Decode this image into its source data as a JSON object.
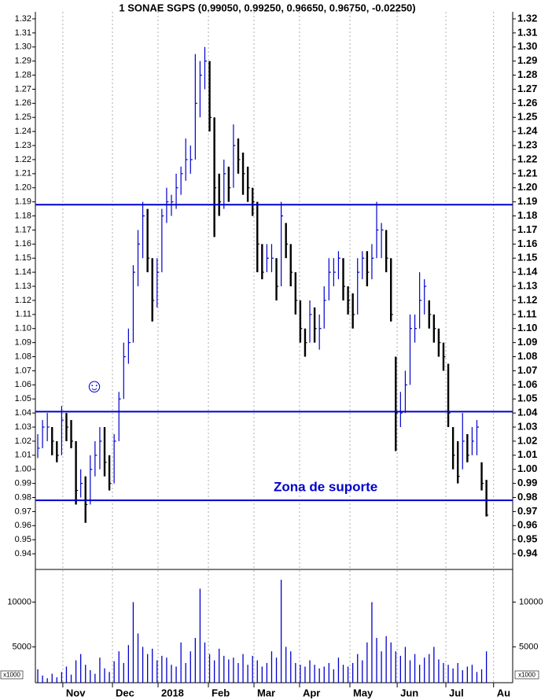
{
  "chart_data": {
    "type": "ohlc",
    "title": "1 SONAE SGPS (0.99050, 0.99250, 0.96650, 0.96750, -0.02250)",
    "x": [
      1,
      3,
      5,
      7,
      9,
      11,
      13,
      15,
      17,
      19,
      21,
      23,
      25,
      27,
      29,
      31,
      33,
      35,
      37,
      39,
      41,
      43,
      45,
      47,
      49,
      51,
      53,
      55,
      57,
      59,
      61,
      63,
      65,
      67,
      69,
      71,
      73,
      75,
      77,
      79,
      81,
      83,
      85,
      87,
      89,
      91,
      93,
      95,
      97,
      99,
      101,
      103,
      105,
      107,
      109,
      111,
      113,
      115,
      117,
      119,
      121,
      123,
      125,
      127,
      129,
      131,
      133,
      135,
      137,
      139,
      141,
      143,
      145,
      147,
      149,
      151,
      153,
      155,
      157,
      159,
      161,
      163,
      165,
      167,
      169,
      171,
      173,
      175,
      177,
      179,
      181,
      183,
      185,
      187,
      189
    ],
    "xlim": [
      0,
      200
    ],
    "xticks": [
      {
        "value": 11.5,
        "label": "Nov"
      },
      {
        "value": 32.3,
        "label": "Dec"
      },
      {
        "value": 51.4,
        "label": "2018"
      },
      {
        "value": 72.5,
        "label": "Feb"
      },
      {
        "value": 91.6,
        "label": "Mar"
      },
      {
        "value": 110.7,
        "label": "Apr"
      },
      {
        "value": 131.8,
        "label": "May"
      },
      {
        "value": 151.6,
        "label": "Jun"
      },
      {
        "value": 172,
        "label": "Jul"
      },
      {
        "value": 192,
        "label": "Au"
      }
    ],
    "high": [
      1.025,
      1.035,
      1.04,
      1.03,
      1.02,
      1.045,
      1.04,
      1.035,
      1.02,
      1.0,
      0.995,
      1.01,
      1.02,
      1.03,
      1.03,
      1.01,
      1.025,
      1.055,
      1.09,
      1.1,
      1.145,
      1.17,
      1.19,
      1.185,
      1.15,
      1.15,
      1.185,
      1.2,
      1.195,
      1.21,
      1.215,
      1.235,
      1.23,
      1.295,
      1.29,
      1.3,
      1.29,
      1.25,
      1.21,
      1.22,
      1.215,
      1.245,
      1.235,
      1.225,
      1.215,
      1.2,
      1.19,
      1.16,
      1.16,
      1.16,
      1.15,
      1.19,
      1.175,
      1.16,
      1.14,
      1.12,
      1.1,
      1.12,
      1.115,
      1.11,
      1.13,
      1.15,
      1.15,
      1.155,
      1.15,
      1.13,
      1.125,
      1.15,
      1.155,
      1.155,
      1.16,
      1.19,
      1.175,
      1.17,
      1.15,
      1.08,
      1.055,
      1.07,
      1.11,
      1.11,
      1.14,
      1.135,
      1.12,
      1.11,
      1.1,
      1.09,
      1.075,
      1.03,
      1.02,
      1.04,
      1.025,
      1.03,
      1.035,
      1.005,
      0.9925
    ],
    "low": [
      1.008,
      1.015,
      1.02,
      1.01,
      1.005,
      1.01,
      1.02,
      1.015,
      0.975,
      0.98,
      0.962,
      0.975,
      0.995,
      1.0,
      0.995,
      0.985,
      0.99,
      1.02,
      1.05,
      1.075,
      1.09,
      1.13,
      1.15,
      1.14,
      1.105,
      1.115,
      1.14,
      1.175,
      1.18,
      1.185,
      1.195,
      1.205,
      1.21,
      1.22,
      1.25,
      1.27,
      1.24,
      1.165,
      1.18,
      1.185,
      1.19,
      1.2,
      1.21,
      1.195,
      1.19,
      1.18,
      1.14,
      1.135,
      1.14,
      1.14,
      1.12,
      1.13,
      1.15,
      1.13,
      1.11,
      1.09,
      1.08,
      1.09,
      1.09,
      1.085,
      1.1,
      1.12,
      1.13,
      1.135,
      1.12,
      1.11,
      1.1,
      1.11,
      1.135,
      1.13,
      1.135,
      1.15,
      1.15,
      1.14,
      1.105,
      1.013,
      1.03,
      1.04,
      1.06,
      1.09,
      1.1,
      1.11,
      1.1,
      1.09,
      1.08,
      1.07,
      1.03,
      1.0,
      0.99,
      1.0,
      1.005,
      1.01,
      1.01,
      0.985,
      0.9665
    ],
    "close": [
      1.015,
      1.03,
      1.03,
      1.02,
      1.01,
      1.035,
      1.03,
      1.02,
      0.985,
      0.99,
      0.975,
      1.0,
      1.01,
      1.02,
      1.005,
      0.99,
      1.02,
      1.05,
      1.08,
      1.09,
      1.14,
      1.16,
      1.18,
      1.15,
      1.12,
      1.14,
      1.18,
      1.19,
      1.19,
      1.2,
      1.21,
      1.22,
      1.22,
      1.26,
      1.28,
      1.29,
      1.25,
      1.2,
      1.19,
      1.21,
      1.2,
      1.23,
      1.22,
      1.21,
      1.2,
      1.19,
      1.16,
      1.14,
      1.15,
      1.15,
      1.13,
      1.18,
      1.16,
      1.14,
      1.12,
      1.1,
      1.09,
      1.11,
      1.1,
      1.1,
      1.12,
      1.14,
      1.14,
      1.15,
      1.13,
      1.12,
      1.11,
      1.14,
      1.15,
      1.14,
      1.15,
      1.17,
      1.17,
      1.15,
      1.11,
      1.04,
      1.04,
      1.06,
      1.1,
      1.1,
      1.12,
      1.13,
      1.11,
      1.1,
      1.09,
      1.08,
      1.04,
      1.01,
      0.995,
      1.02,
      1.01,
      1.02,
      1.03,
      0.99,
      0.9675
    ],
    "up_color": "#0000cc",
    "down_color": "#000000",
    "ylim": [
      0.93,
      1.325
    ],
    "yticks": [
      0.94,
      0.95,
      0.96,
      0.97,
      0.98,
      0.99,
      {
        "value": 1.0,
        "label": "1.00"
      },
      1.01,
      1.02,
      1.03,
      1.04,
      1.05,
      1.06,
      1.07,
      1.08,
      1.09,
      {
        "value": 1.1,
        "label": "1.10"
      },
      1.11,
      1.12,
      1.13,
      1.14,
      1.15,
      1.16,
      1.17,
      1.18,
      1.19,
      {
        "value": 1.2,
        "label": "1.20"
      },
      1.21,
      1.22,
      1.23,
      1.24,
      1.25,
      1.26,
      1.27,
      1.28,
      1.29,
      {
        "value": 1.3,
        "label": "1.30"
      },
      1.31,
      1.32
    ],
    "hlines": [
      1.188,
      1.041,
      0.978
    ],
    "hline_color": "#0000cc",
    "annotations": [
      "Zona de suporte",
      "☺"
    ],
    "volume": {
      "values": [
        2500,
        1800,
        1500,
        2000,
        1600,
        2200,
        2800,
        1900,
        3500,
        4200,
        3000,
        2400,
        2000,
        3800,
        2600,
        2200,
        3400,
        4500,
        3200,
        5200,
        10000,
        6500,
        5000,
        4200,
        4800,
        3500,
        4000,
        3800,
        3000,
        2800,
        5500,
        3200,
        4500,
        6000,
        11500,
        5500,
        4200,
        3500,
        4800,
        4000,
        3600,
        3800,
        3200,
        4200,
        3000,
        4000,
        3500,
        2800,
        3200,
        4500,
        3800,
        12500,
        5000,
        4500,
        3200,
        3000,
        2800,
        3500,
        3000,
        2600,
        2800,
        3200,
        2500,
        3800,
        3000,
        2800,
        3200,
        4200,
        3500,
        5500,
        10000,
        6000,
        4500,
        6200,
        5500,
        4500,
        4000,
        5000,
        3500,
        4200,
        3000,
        3800,
        4200,
        5000,
        3600,
        3200,
        3000,
        2600,
        3200,
        2400,
        2800,
        3000,
        2200,
        2500,
        4500
      ],
      "ylim": [
        1000,
        13650
      ],
      "yticks": [
        5000,
        10000
      ],
      "unit_label": "x1000",
      "color": "#0000cc"
    },
    "grid": true
  }
}
